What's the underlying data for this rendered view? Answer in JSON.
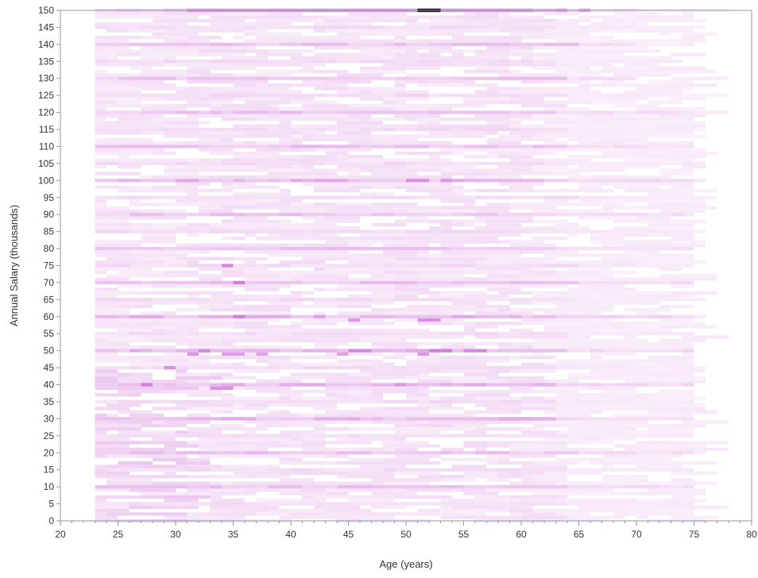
{
  "chart_data": {
    "type": "heatmap",
    "title": "",
    "xlabel": "Age (years)",
    "ylabel": "Annual Salary (thousands)",
    "xlim": [
      20,
      80
    ],
    "ylim": [
      0,
      150
    ],
    "x_ticks": [
      20,
      25,
      30,
      35,
      40,
      45,
      50,
      55,
      60,
      65,
      70,
      75,
      80
    ],
    "y_ticks": [
      0,
      5,
      10,
      15,
      20,
      25,
      30,
      35,
      40,
      45,
      50,
      55,
      60,
      65,
      70,
      75,
      80,
      85,
      90,
      95,
      100,
      105,
      110,
      115,
      120,
      125,
      130,
      135,
      140,
      145,
      150
    ],
    "x_bin_width": 1,
    "y_bin_height": 1,
    "grid": false,
    "legend": "none",
    "colors": {
      "low": "#fbf2fb",
      "high": "#c24fcf",
      "max": "#1a0a1a",
      "axis": "#8a9aa6"
    },
    "data_extent": {
      "age_min": 23,
      "age_max": 75,
      "salary_min": 0,
      "salary_max": 150
    },
    "cells": [
      {
        "age": 51,
        "salary": 150,
        "w": 2,
        "intensity": 1.0
      },
      {
        "age": 31,
        "salary": 150,
        "w": 20,
        "intensity": 0.55
      },
      {
        "age": 53,
        "salary": 150,
        "w": 8,
        "intensity": 0.55
      },
      {
        "age": 61,
        "salary": 150,
        "w": 2,
        "intensity": 0.35
      },
      {
        "age": 63,
        "salary": 150,
        "w": 1,
        "intensity": 0.5
      },
      {
        "age": 65,
        "salary": 150,
        "w": 1,
        "intensity": 0.5
      },
      {
        "age": 50,
        "salary": 100,
        "w": 2,
        "intensity": 0.6
      },
      {
        "age": 53,
        "salary": 100,
        "w": 1,
        "intensity": 0.55
      },
      {
        "age": 34,
        "salary": 75,
        "w": 1,
        "intensity": 0.65
      },
      {
        "age": 35,
        "salary": 70,
        "w": 1,
        "intensity": 0.7
      },
      {
        "age": 35,
        "salary": 60,
        "w": 1,
        "intensity": 0.7
      },
      {
        "age": 42,
        "salary": 60,
        "w": 1,
        "intensity": 0.5
      },
      {
        "age": 45,
        "salary": 59,
        "w": 1,
        "intensity": 0.55
      },
      {
        "age": 51,
        "salary": 59,
        "w": 2,
        "intensity": 0.6
      },
      {
        "age": 32,
        "salary": 50,
        "w": 1,
        "intensity": 0.65
      },
      {
        "age": 31,
        "salary": 49,
        "w": 1,
        "intensity": 0.55
      },
      {
        "age": 34,
        "salary": 49,
        "w": 2,
        "intensity": 0.5
      },
      {
        "age": 37,
        "salary": 49,
        "w": 1,
        "intensity": 0.5
      },
      {
        "age": 44,
        "salary": 49,
        "w": 1,
        "intensity": 0.5
      },
      {
        "age": 45,
        "salary": 50,
        "w": 2,
        "intensity": 0.65
      },
      {
        "age": 51,
        "salary": 49,
        "w": 1,
        "intensity": 0.55
      },
      {
        "age": 52,
        "salary": 50,
        "w": 2,
        "intensity": 0.7
      },
      {
        "age": 55,
        "salary": 50,
        "w": 2,
        "intensity": 0.65
      },
      {
        "age": 29,
        "salary": 45,
        "w": 1,
        "intensity": 0.6
      },
      {
        "age": 27,
        "salary": 40,
        "w": 1,
        "intensity": 0.7
      },
      {
        "age": 33,
        "salary": 39,
        "w": 2,
        "intensity": 0.6
      },
      {
        "age": 49,
        "salary": 40,
        "w": 1,
        "intensity": 0.55
      }
    ]
  }
}
